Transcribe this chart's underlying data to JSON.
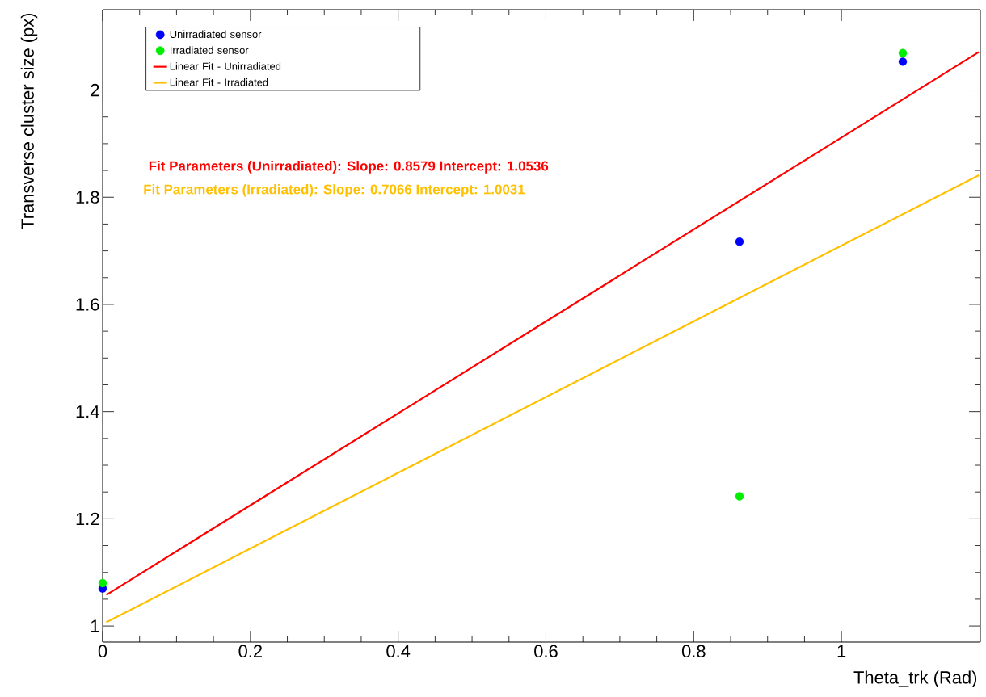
{
  "chart_data": {
    "type": "scatter",
    "xlabel": "Theta_trk (Rad)",
    "ylabel": "Transverse cluster size (px)",
    "xlim": [
      0,
      1.188
    ],
    "ylim": [
      0.97,
      2.15
    ],
    "xticks": [
      0,
      0.2,
      0.4,
      0.6,
      0.8,
      1
    ],
    "yticks": [
      1,
      1.2,
      1.4,
      1.6,
      1.8,
      2
    ],
    "marker": "circle",
    "legend": "top left",
    "grid": false,
    "series": [
      {
        "name": "Unirradiated sensor",
        "color": "#0000ff",
        "x": [
          0,
          0.862,
          1.083
        ],
        "values": [
          1.07,
          1.717,
          2.053
        ]
      },
      {
        "name": "Irradiated sensor",
        "color": "#00ee00",
        "x": [
          0,
          0.862,
          1.083
        ],
        "values": [
          1.08,
          1.242,
          2.069
        ]
      },
      {
        "name": "Linear Fit - Unirradiated",
        "type": "line",
        "marker": "none",
        "color": "#ff0000",
        "x": [
          0.005,
          1.186
        ],
        "values": [
          1.058,
          2.071
        ]
      },
      {
        "name": "Linear Fit - Irradiated",
        "type": "line",
        "marker": "none",
        "color": "#ffc000",
        "x": [
          0.005,
          1.186
        ],
        "values": [
          1.007,
          1.841
        ]
      }
    ],
    "annotations": [
      "Fit Parameters (Unirradiated): Slope: 0.8579 Intercept: 1.0536",
      "Fit Parameters (Irradiated): Slope: 0.7066 Intercept: 1.0031"
    ]
  }
}
